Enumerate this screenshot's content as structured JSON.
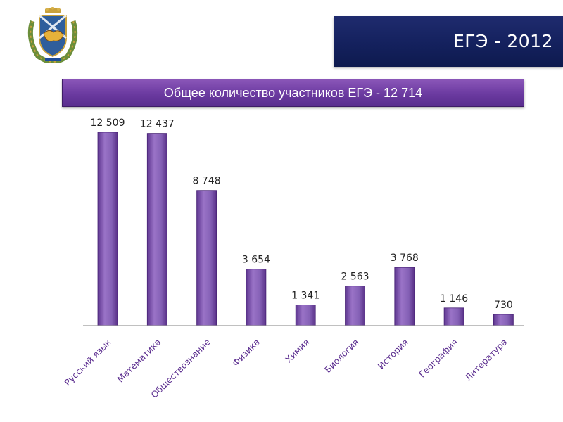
{
  "header": {
    "title": "ЕГЭ - 2012"
  },
  "subtitle": "Общее количество участников ЕГЭ - 12 714",
  "colors": {
    "title_bar": "#13205c",
    "subtitle_box": "#6b3aa0",
    "bar": "#7f55ad",
    "category_text": "#5b2d8f"
  },
  "icons": {
    "emblem": "coat-of-arms-icon"
  },
  "chart_data": {
    "type": "bar",
    "categories": [
      "Русский язык",
      "Математика",
      "Обществознание",
      "Физика",
      "Химия",
      "Биология",
      "История",
      "География",
      "Литература"
    ],
    "values": [
      12509,
      12437,
      8748,
      3654,
      1341,
      2563,
      3768,
      1146,
      730
    ],
    "value_labels": [
      "12 509",
      "12 437",
      "8 748",
      "3 654",
      "1 341",
      "2 563",
      "3 768",
      "1 146",
      "730"
    ],
    "ylim": [
      0,
      12509
    ],
    "grid": false,
    "legend": "none"
  }
}
